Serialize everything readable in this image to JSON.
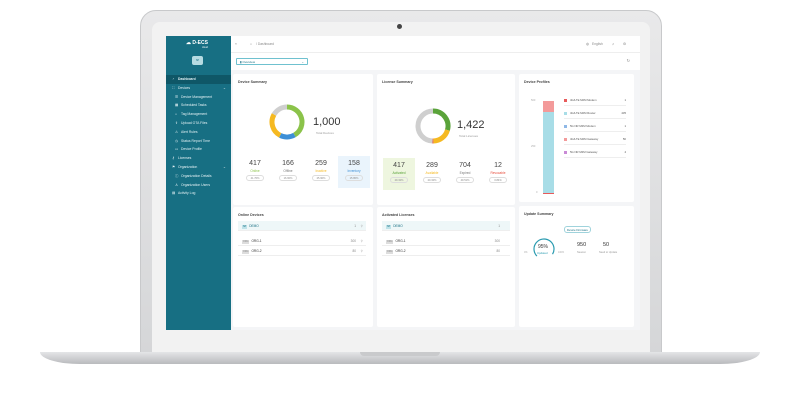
{
  "brand": {
    "name": "D-ECS",
    "sub": "cloud",
    "avatar": "SP"
  },
  "sidebar": {
    "items": [
      {
        "label": "Dashboard",
        "icon": "dashboard-icon",
        "active": true
      },
      {
        "label": "Devices",
        "icon": "devices-icon"
      },
      {
        "label": "Device Management",
        "icon": "list-icon",
        "sub": true
      },
      {
        "label": "Scheduled Tasks",
        "icon": "calendar-icon",
        "sub": true
      },
      {
        "label": "Tag Management",
        "icon": "tag-icon",
        "sub": true
      },
      {
        "label": "Upload OTA Files",
        "icon": "upload-icon",
        "sub": true
      },
      {
        "label": "Alert Rules",
        "icon": "alert-icon",
        "sub": true
      },
      {
        "label": "Status Report Time",
        "icon": "clock-icon",
        "sub": true
      },
      {
        "label": "Device Profile",
        "icon": "folder-icon",
        "sub": true
      },
      {
        "label": "Licenses",
        "icon": "key-icon"
      },
      {
        "label": "Organization",
        "icon": "organization-icon"
      },
      {
        "label": "Organization Details",
        "icon": "info-icon",
        "sub": true
      },
      {
        "label": "Organization Users",
        "icon": "users-icon",
        "sub": true
      },
      {
        "label": "Activity Log",
        "icon": "log-icon"
      }
    ]
  },
  "header": {
    "breadcrumb": "Dashboard",
    "language": "English",
    "view_select": "Overview"
  },
  "device_summary": {
    "title": "Device Summary",
    "total": "1,000",
    "total_label": "Total Devices",
    "stats": [
      {
        "n": "417",
        "label": "Online",
        "pct": "41.70%",
        "color": "#8bc34a"
      },
      {
        "n": "166",
        "label": "Offline",
        "pct": "16.60%",
        "color": "#cfcfcf"
      },
      {
        "n": "259",
        "label": "Inactive",
        "pct": "25.90%",
        "color": "#f5b921"
      },
      {
        "n": "158",
        "label": "Inventory",
        "pct": "15.80%",
        "color": "#3d8fd6"
      }
    ]
  },
  "license_summary": {
    "title": "License Summary",
    "total": "1,422",
    "total_label": "Total Licenses",
    "stats": [
      {
        "n": "417",
        "label": "Activated",
        "pct": "29.32%",
        "color": "#5aa33a"
      },
      {
        "n": "289",
        "label": "Available",
        "pct": "20.32%",
        "color": "#f5b921"
      },
      {
        "n": "704",
        "label": "Expired",
        "pct": "49.51%",
        "color": "#cfcfcf"
      },
      {
        "n": "12",
        "label": "Revocable",
        "pct": "0.84%",
        "color": "#e74c3c"
      }
    ]
  },
  "device_profiles": {
    "title": "Device Profiles",
    "axis": [
      "500",
      "250",
      "0"
    ],
    "items": [
      {
        "label": "4G/LTE M2M Modem",
        "value": 1,
        "color": "#e85a5a"
      },
      {
        "label": "4G/LTE M2M Router",
        "value": 435,
        "color": "#a8dde7"
      },
      {
        "label": "5G NR M2M Modem",
        "value": 1,
        "color": "#8fb8e6"
      },
      {
        "label": "4G/LTE M2M Gateway",
        "value": 56,
        "color": "#f39a9a"
      },
      {
        "label": "5G NR M2M Gateway",
        "value": 4,
        "color": "#c98ad6"
      }
    ]
  },
  "online_devices": {
    "title": "Online Devices",
    "rows": [
      {
        "tag": "SP",
        "name": "DEMO",
        "value": "1"
      },
      {
        "tag": "ORG",
        "name": "ORG-1",
        "value": "300"
      },
      {
        "tag": "ORG",
        "name": "ORG-2",
        "value": "80"
      }
    ]
  },
  "activated_licenses": {
    "title": "Activated Licenses",
    "rows": [
      {
        "tag": "SP",
        "name": "DEMO",
        "value": "1"
      },
      {
        "tag": "ORG",
        "name": "ORG-1",
        "value": "300"
      },
      {
        "tag": "ORG",
        "name": "ORG-2",
        "value": "80"
      }
    ]
  },
  "update_summary": {
    "title": "Update Summary",
    "filter": "Device Firmware",
    "percent": 95,
    "percent_label": "95%",
    "updated_label": "Updated",
    "min": "0%",
    "max": "100%",
    "newest": "950",
    "newest_label": "Newest",
    "need": "50",
    "need_label": "Need to Update"
  }
}
